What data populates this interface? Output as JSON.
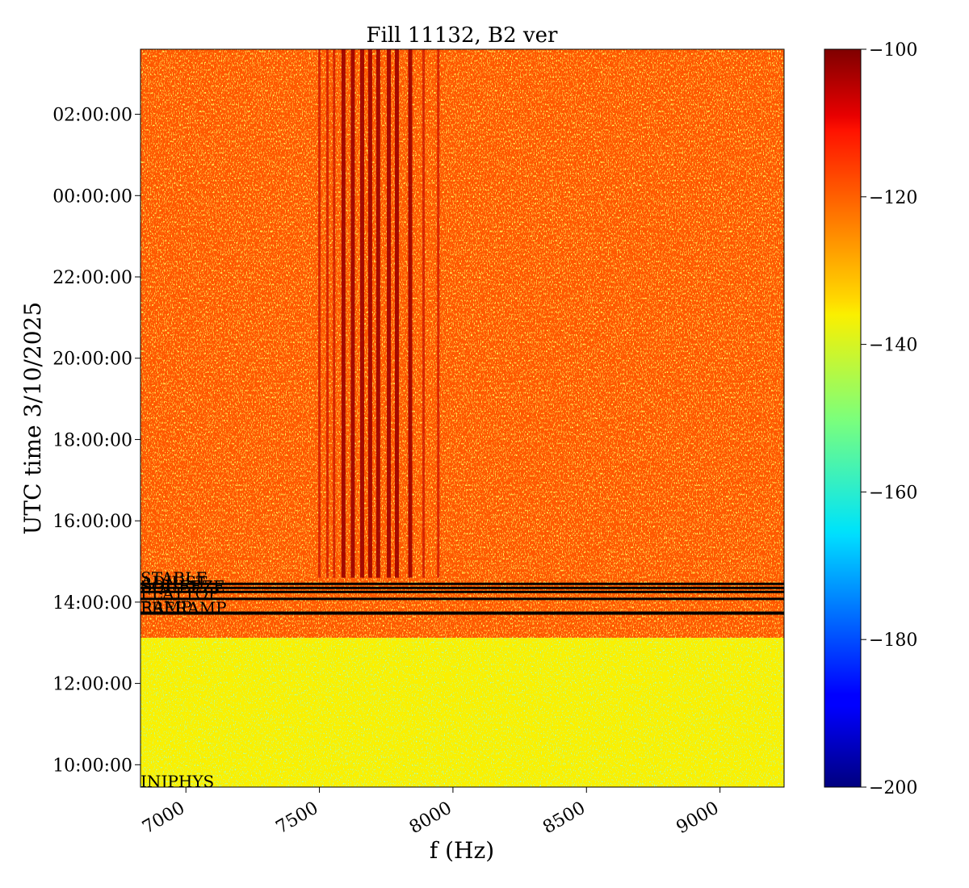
{
  "chart_data": {
    "type": "heatmap",
    "title": "Fill 11132, B2 ver",
    "xlabel": "f (Hz)",
    "ylabel": "UTC time 3/10/2025",
    "xlim": [
      6830,
      9240
    ],
    "ylim_hours": [
      9.45,
      27.6
    ],
    "x_ticks": [
      7000,
      7500,
      8000,
      8500,
      9000
    ],
    "x_tick_labels": [
      "7000",
      "7500",
      "8000",
      "8500",
      "9000"
    ],
    "y_ticks_hours": [
      10,
      12,
      14,
      16,
      18,
      20,
      22,
      24,
      26
    ],
    "y_tick_labels": [
      "10:00:00",
      "12:00:00",
      "14:00:00",
      "16:00:00",
      "18:00:00",
      "20:00:00",
      "22:00:00",
      "00:00:00",
      "02:00:00"
    ],
    "colorbar": {
      "colormap": "jet",
      "range": [
        -200,
        -100
      ],
      "ticks": [
        -100,
        -120,
        -140,
        -160,
        -180,
        -200
      ],
      "tick_labels": [
        "−100",
        "−120",
        "−140",
        "−160",
        "−180",
        "−200"
      ]
    },
    "levels": {
      "background_before_beam": -136,
      "background_with_beam": -119,
      "beam_onset_hours": 13.1
    },
    "lines_hz": [
      7500,
      7530,
      7555,
      7590,
      7625,
      7660,
      7690,
      7720,
      7760,
      7790,
      7840,
      7890,
      7945
    ],
    "lines_start_hours": 14.6,
    "phases": [
      {
        "label": "INJPHYS",
        "time_hours": 9.45
      },
      {
        "label": "PRERAMP",
        "time_hours": 13.72
      },
      {
        "label": "RAMP",
        "time_hours": 13.74
      },
      {
        "label": "FLATTOP",
        "time_hours": 14.08
      },
      {
        "label": "SQUEEZE",
        "time_hours": 14.25
      },
      {
        "label": "ADJUST",
        "time_hours": 14.35
      },
      {
        "label": "STABLE",
        "time_hours": 14.45
      }
    ]
  }
}
